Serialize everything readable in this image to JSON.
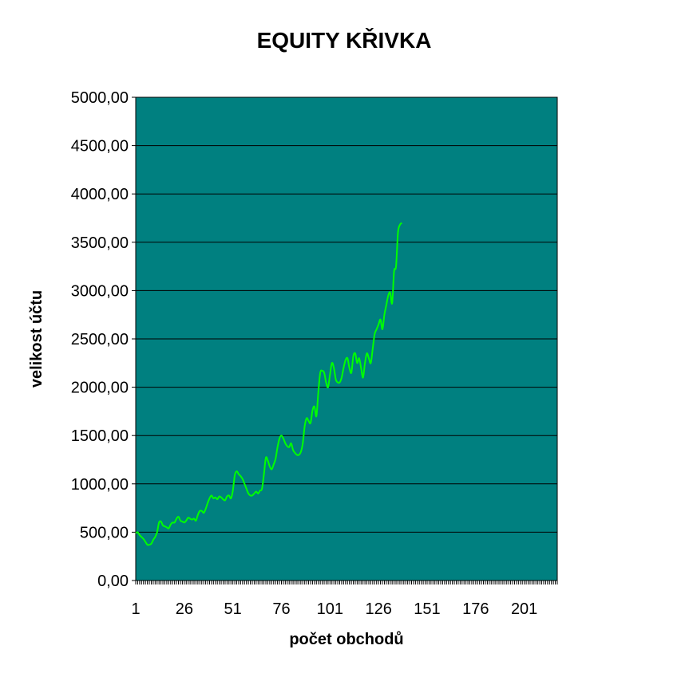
{
  "chart_data": {
    "type": "line",
    "title": "EQUITY KŘIVKA",
    "xlabel": "počet obchodů",
    "ylabel": "velikost účtu",
    "xlim": [
      1,
      218
    ],
    "ylim": [
      0,
      5000
    ],
    "x_ticks": [
      "1",
      "26",
      "51",
      "76",
      "101",
      "126",
      "151",
      "176",
      "201"
    ],
    "y_ticks": [
      "0,00",
      "500,00",
      "1000,00",
      "1500,00",
      "2000,00",
      "2500,00",
      "3000,00",
      "3500,00",
      "4000,00",
      "4500,00",
      "5000,00"
    ],
    "grid": "horizontal",
    "legend": "none",
    "series": [
      {
        "x": [
          1,
          2,
          3,
          4,
          5,
          6,
          7,
          8,
          9,
          10,
          11,
          12,
          13,
          14,
          15,
          16,
          17,
          18,
          19,
          20,
          21,
          22,
          23,
          24,
          25,
          26,
          27,
          28,
          29,
          30,
          31,
          32,
          33,
          34,
          35,
          36,
          37,
          38,
          39,
          40,
          41,
          42,
          43,
          44,
          45,
          46,
          47,
          48,
          49,
          50,
          51,
          52,
          53,
          54,
          55,
          56,
          57,
          58,
          59,
          60,
          61,
          62,
          63,
          64,
          65,
          66,
          67,
          68,
          69,
          70,
          71,
          72,
          73,
          74,
          75,
          76,
          77,
          78,
          79,
          80,
          81,
          82,
          83,
          84,
          85,
          86,
          87,
          88,
          89,
          90,
          91,
          92,
          93,
          94,
          95,
          96,
          97,
          98,
          99,
          100,
          101,
          102,
          103,
          104,
          105,
          106,
          107,
          108,
          109,
          110,
          111,
          112,
          113,
          114,
          115,
          116,
          117,
          118,
          119,
          120,
          121,
          122,
          123,
          124,
          125,
          126,
          127,
          128,
          129,
          130,
          131,
          132,
          133,
          134,
          135,
          136,
          137,
          138
        ],
        "y": [
          490,
          500,
          470,
          450,
          430,
          400,
          370,
          370,
          380,
          420,
          450,
          500,
          600,
          610,
          570,
          560,
          550,
          540,
          580,
          600,
          600,
          640,
          660,
          620,
          610,
          600,
          620,
          650,
          640,
          630,
          640,
          620,
          680,
          720,
          720,
          700,
          740,
          800,
          850,
          880,
          850,
          860,
          840,
          870,
          860,
          840,
          830,
          870,
          880,
          850,
          930,
          1090,
          1130,
          1100,
          1080,
          1050,
          1000,
          950,
          900,
          880,
          880,
          900,
          920,
          900,
          930,
          950,
          1100,
          1270,
          1240,
          1180,
          1150,
          1200,
          1260,
          1380,
          1470,
          1500,
          1470,
          1420,
          1390,
          1380,
          1420,
          1350,
          1320,
          1300,
          1300,
          1330,
          1420,
          1600,
          1680,
          1650,
          1630,
          1760,
          1800,
          1700,
          1950,
          2150,
          2170,
          2150,
          2050,
          2000,
          2130,
          2250,
          2200,
          2080,
          2050,
          2050,
          2100,
          2200,
          2280,
          2300,
          2200,
          2150,
          2320,
          2350,
          2250,
          2300,
          2200,
          2100,
          2250,
          2350,
          2300,
          2250,
          2400,
          2550,
          2600,
          2650,
          2700,
          2600,
          2750,
          2850,
          2950,
          2980,
          2870,
          3200,
          3250,
          3600,
          3680,
          3700
        ]
      }
    ]
  },
  "style": {
    "plot_background": "#008080",
    "gridline_color": "#000000",
    "line_color": "#00ff00",
    "text_color": "#000000"
  }
}
